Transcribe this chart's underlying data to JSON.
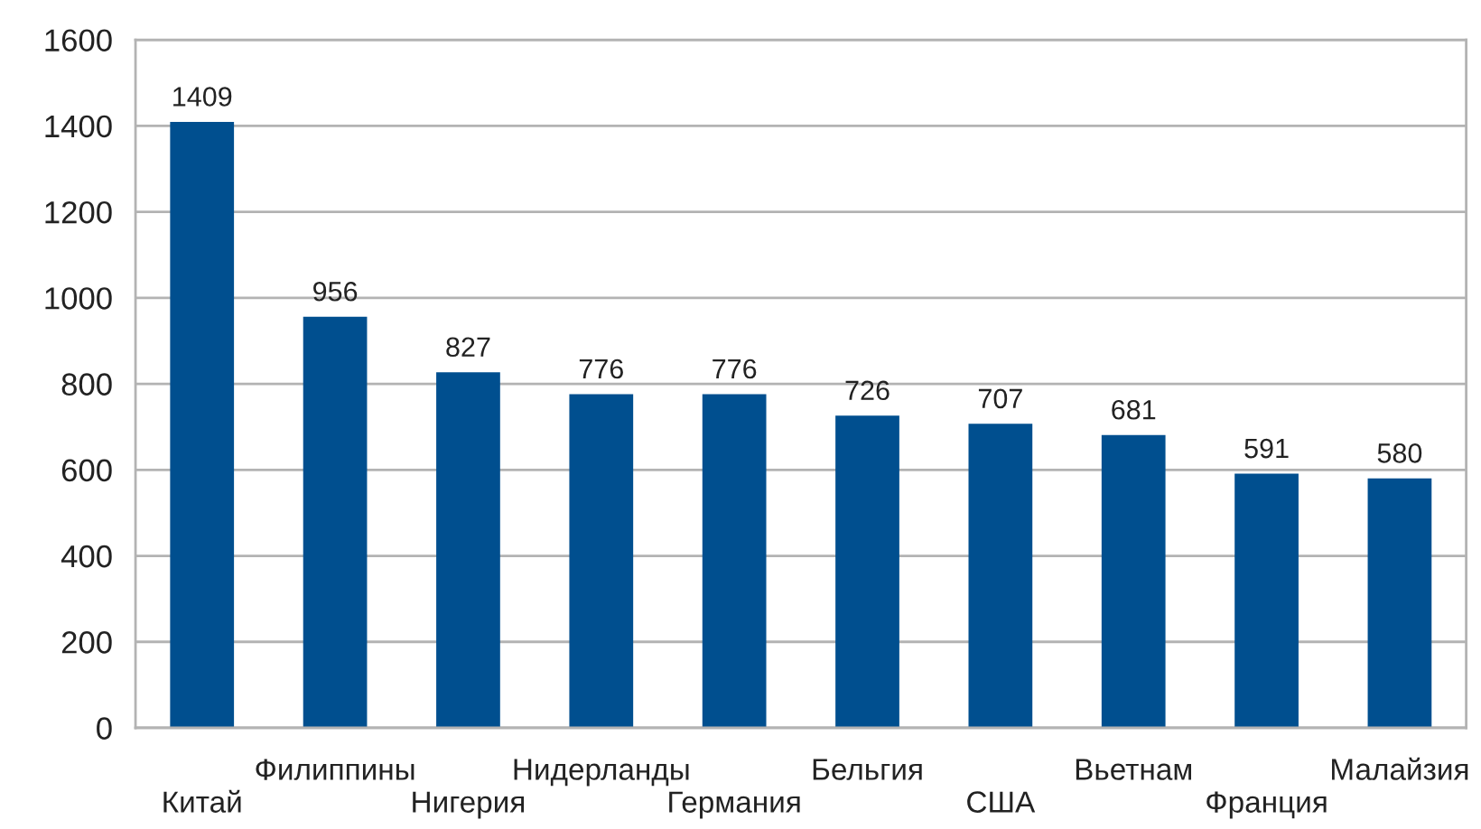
{
  "chart_data": {
    "type": "bar",
    "categories": [
      "Китай",
      "Филиппины",
      "Нигерия",
      "Нидерланды",
      "Германия",
      "Бельгия",
      "США",
      "Вьетнам",
      "Франция",
      "Малайзия"
    ],
    "values": [
      1409,
      956,
      827,
      776,
      776,
      726,
      707,
      681,
      591,
      580
    ],
    "color": "#004f8f",
    "ylim": [
      0,
      1600
    ],
    "yticks": [
      0,
      200,
      400,
      600,
      800,
      1000,
      1200,
      1400,
      1600
    ],
    "grid": "y",
    "data_labels": true
  }
}
